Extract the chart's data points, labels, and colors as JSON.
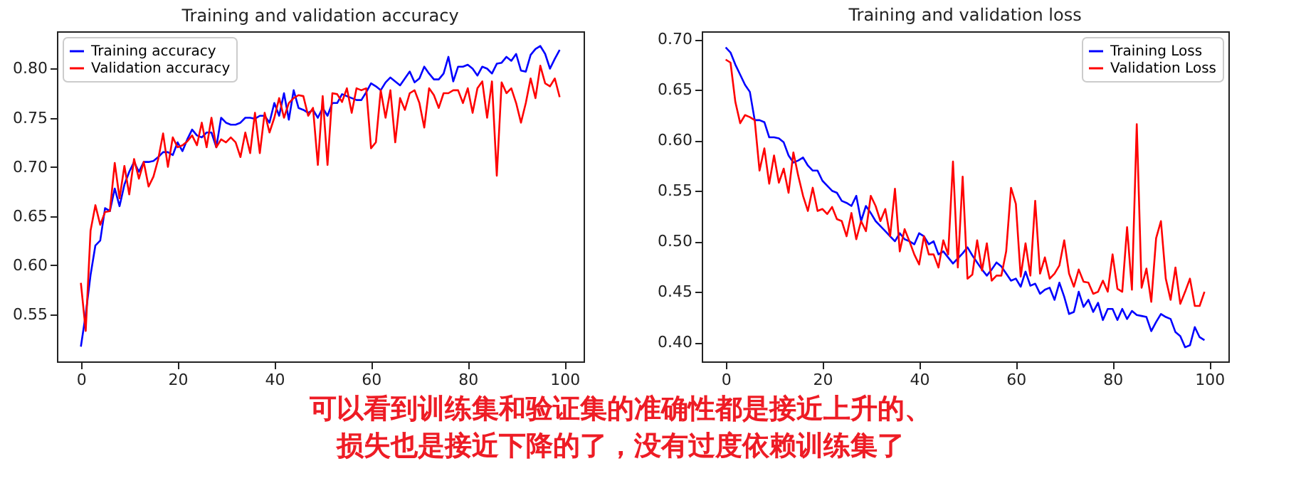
{
  "chart_data": [
    {
      "type": "line",
      "title": "Training and validation accuracy",
      "x": [
        0,
        1,
        2,
        3,
        4,
        5,
        6,
        7,
        8,
        9,
        10,
        11,
        12,
        13,
        14,
        15,
        16,
        17,
        18,
        19,
        20,
        21,
        22,
        23,
        24,
        25,
        26,
        27,
        28,
        29,
        30,
        31,
        32,
        33,
        34,
        35,
        36,
        37,
        38,
        39,
        40,
        41,
        42,
        43,
        44,
        45,
        46,
        47,
        48,
        49,
        50,
        51,
        52,
        53,
        54,
        55,
        56,
        57,
        58,
        59,
        60,
        61,
        62,
        63,
        64,
        65,
        66,
        67,
        68,
        69,
        70,
        71,
        72,
        73,
        74,
        75,
        76,
        77,
        78,
        79,
        80,
        81,
        82,
        83,
        84,
        85,
        86,
        87,
        88,
        89,
        90,
        91,
        92,
        93,
        94,
        95,
        96,
        97,
        98,
        99
      ],
      "series": [
        {
          "name": "Training accuracy",
          "color": "#0000ff",
          "values": [
            0.517,
            0.55,
            0.59,
            0.62,
            0.625,
            0.658,
            0.655,
            0.678,
            0.66,
            0.682,
            0.695,
            0.705,
            0.695,
            0.705,
            0.705,
            0.706,
            0.71,
            0.715,
            0.715,
            0.712,
            0.725,
            0.716,
            0.728,
            0.738,
            0.732,
            0.73,
            0.735,
            0.735,
            0.72,
            0.75,
            0.745,
            0.743,
            0.743,
            0.745,
            0.75,
            0.75,
            0.749,
            0.752,
            0.752,
            0.745,
            0.765,
            0.752,
            0.775,
            0.748,
            0.778,
            0.76,
            0.758,
            0.755,
            0.758,
            0.75,
            0.76,
            0.752,
            0.765,
            0.765,
            0.774,
            0.772,
            0.77,
            0.768,
            0.768,
            0.776,
            0.785,
            0.782,
            0.778,
            0.786,
            0.791,
            0.787,
            0.783,
            0.79,
            0.797,
            0.786,
            0.79,
            0.802,
            0.795,
            0.789,
            0.789,
            0.795,
            0.812,
            0.787,
            0.802,
            0.802,
            0.804,
            0.8,
            0.793,
            0.802,
            0.8,
            0.795,
            0.805,
            0.806,
            0.812,
            0.808,
            0.815,
            0.798,
            0.797,
            0.814,
            0.82,
            0.823,
            0.815,
            0.8,
            0.81,
            0.819
          ]
        },
        {
          "name": "Validation accuracy",
          "color": "#ff0000",
          "values": [
            0.582,
            0.533,
            0.635,
            0.661,
            0.641,
            0.654,
            0.655,
            0.704,
            0.668,
            0.701,
            0.672,
            0.708,
            0.688,
            0.705,
            0.68,
            0.69,
            0.708,
            0.734,
            0.7,
            0.73,
            0.72,
            0.722,
            0.726,
            0.732,
            0.722,
            0.745,
            0.72,
            0.75,
            0.72,
            0.728,
            0.725,
            0.73,
            0.725,
            0.71,
            0.735,
            0.714,
            0.755,
            0.714,
            0.755,
            0.735,
            0.75,
            0.77,
            0.75,
            0.765,
            0.77,
            0.773,
            0.772,
            0.752,
            0.76,
            0.702,
            0.772,
            0.702,
            0.775,
            0.774,
            0.766,
            0.78,
            0.755,
            0.78,
            0.778,
            0.78,
            0.719,
            0.725,
            0.778,
            0.75,
            0.778,
            0.725,
            0.77,
            0.758,
            0.775,
            0.778,
            0.765,
            0.74,
            0.78,
            0.773,
            0.76,
            0.775,
            0.775,
            0.778,
            0.778,
            0.765,
            0.78,
            0.755,
            0.78,
            0.787,
            0.75,
            0.787,
            0.691,
            0.786,
            0.775,
            0.78,
            0.765,
            0.745,
            0.765,
            0.79,
            0.77,
            0.803,
            0.785,
            0.782,
            0.79,
            0.771
          ]
        }
      ],
      "xlim": [
        -4.95,
        103.95
      ],
      "xticks": [
        0,
        20,
        40,
        60,
        80,
        100
      ],
      "ylim": [
        0.502,
        0.838
      ],
      "yticks": [
        {
          "value": 0.55,
          "label": "0.55"
        },
        {
          "value": 0.6,
          "label": "0.60"
        },
        {
          "value": 0.65,
          "label": "0.65"
        },
        {
          "value": 0.7,
          "label": "0.70"
        },
        {
          "value": 0.75,
          "label": "0.75"
        },
        {
          "value": 0.8,
          "label": "0.80"
        }
      ],
      "legend": "top left",
      "grid": false,
      "line_style": "solid",
      "marker": "none",
      "annotations": [
        "可以看到训练集和验证集的准确性都是接近上升的、",
        "损失也是接近下降的了，没有过度依赖训练集了"
      ]
    },
    {
      "type": "line",
      "title": "Training and validation loss",
      "x": [
        0,
        1,
        2,
        3,
        4,
        5,
        6,
        7,
        8,
        9,
        10,
        11,
        12,
        13,
        14,
        15,
        16,
        17,
        18,
        19,
        20,
        21,
        22,
        23,
        24,
        25,
        26,
        27,
        28,
        29,
        30,
        31,
        32,
        33,
        34,
        35,
        36,
        37,
        38,
        39,
        40,
        41,
        42,
        43,
        44,
        45,
        46,
        47,
        48,
        49,
        50,
        51,
        52,
        53,
        54,
        55,
        56,
        57,
        58,
        59,
        60,
        61,
        62,
        63,
        64,
        65,
        66,
        67,
        68,
        69,
        70,
        71,
        72,
        73,
        74,
        75,
        76,
        77,
        78,
        79,
        80,
        81,
        82,
        83,
        84,
        85,
        86,
        87,
        88,
        89,
        90,
        91,
        92,
        93,
        94,
        95,
        96,
        97,
        98,
        99
      ],
      "series": [
        {
          "name": "Training Loss",
          "color": "#0000ff",
          "values": [
            0.692,
            0.687,
            0.675,
            0.665,
            0.655,
            0.648,
            0.62,
            0.62,
            0.618,
            0.603,
            0.603,
            0.602,
            0.598,
            0.585,
            0.578,
            0.58,
            0.583,
            0.575,
            0.57,
            0.57,
            0.56,
            0.555,
            0.55,
            0.548,
            0.54,
            0.538,
            0.535,
            0.545,
            0.52,
            0.535,
            0.528,
            0.52,
            0.515,
            0.51,
            0.505,
            0.5,
            0.508,
            0.502,
            0.5,
            0.497,
            0.508,
            0.505,
            0.497,
            0.5,
            0.487,
            0.49,
            0.484,
            0.478,
            0.483,
            0.488,
            0.494,
            0.486,
            0.479,
            0.472,
            0.466,
            0.472,
            0.479,
            0.475,
            0.468,
            0.461,
            0.463,
            0.455,
            0.47,
            0.456,
            0.458,
            0.448,
            0.452,
            0.454,
            0.442,
            0.459,
            0.445,
            0.428,
            0.43,
            0.45,
            0.435,
            0.442,
            0.43,
            0.439,
            0.422,
            0.433,
            0.433,
            0.422,
            0.433,
            0.423,
            0.431,
            0.427,
            0.426,
            0.425,
            0.411,
            0.42,
            0.428,
            0.425,
            0.423,
            0.41,
            0.406,
            0.395,
            0.397,
            0.415,
            0.405,
            0.402
          ]
        },
        {
          "name": "Validation Loss",
          "color": "#ff0000",
          "values": [
            0.68,
            0.677,
            0.638,
            0.617,
            0.625,
            0.623,
            0.62,
            0.57,
            0.592,
            0.557,
            0.585,
            0.558,
            0.572,
            0.548,
            0.588,
            0.565,
            0.545,
            0.53,
            0.553,
            0.53,
            0.532,
            0.527,
            0.534,
            0.522,
            0.52,
            0.505,
            0.528,
            0.502,
            0.52,
            0.51,
            0.545,
            0.535,
            0.52,
            0.532,
            0.505,
            0.552,
            0.49,
            0.512,
            0.5,
            0.487,
            0.477,
            0.505,
            0.487,
            0.487,
            0.474,
            0.501,
            0.487,
            0.579,
            0.474,
            0.564,
            0.463,
            0.467,
            0.501,
            0.471,
            0.498,
            0.461,
            0.466,
            0.466,
            0.49,
            0.553,
            0.537,
            0.465,
            0.498,
            0.466,
            0.54,
            0.468,
            0.484,
            0.463,
            0.468,
            0.476,
            0.501,
            0.468,
            0.455,
            0.472,
            0.46,
            0.459,
            0.448,
            0.45,
            0.461,
            0.45,
            0.487,
            0.453,
            0.45,
            0.514,
            0.452,
            0.616,
            0.454,
            0.473,
            0.44,
            0.503,
            0.52,
            0.463,
            0.442,
            0.474,
            0.438,
            0.45,
            0.463,
            0.436,
            0.436,
            0.45
          ]
        }
      ],
      "xlim": [
        -4.95,
        103.95
      ],
      "xticks": [
        0,
        20,
        40,
        60,
        80,
        100
      ],
      "ylim": [
        0.381,
        0.708
      ],
      "yticks": [
        {
          "value": 0.4,
          "label": "0.40"
        },
        {
          "value": 0.45,
          "label": "0.45"
        },
        {
          "value": 0.5,
          "label": "0.50"
        },
        {
          "value": 0.55,
          "label": "0.55"
        },
        {
          "value": 0.6,
          "label": "0.60"
        },
        {
          "value": 0.65,
          "label": "0.65"
        },
        {
          "value": 0.7,
          "label": "0.70"
        }
      ],
      "legend": "top right",
      "grid": false,
      "line_style": "solid",
      "marker": "none"
    }
  ]
}
